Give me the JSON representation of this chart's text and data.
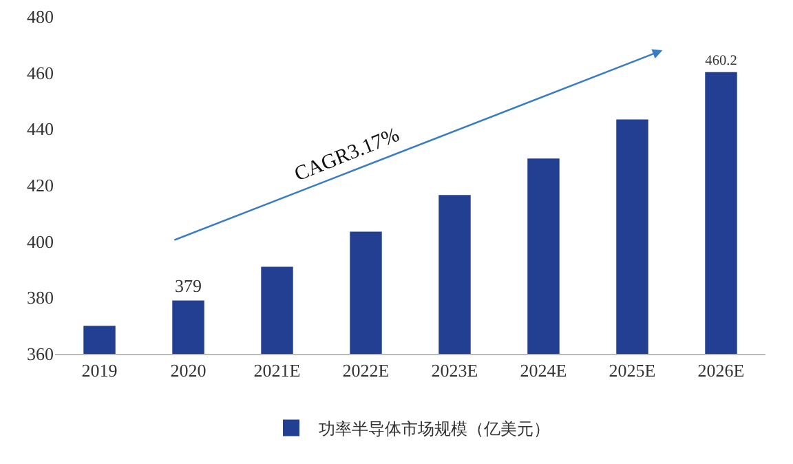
{
  "chart_data": {
    "type": "bar",
    "categories": [
      "2019",
      "2020",
      "2021E",
      "2022E",
      "2023E",
      "2024E",
      "2025E",
      "2026E"
    ],
    "series": [
      {
        "name": "功率半导体市场规模（亿美元）",
        "color": "#233f92",
        "values": [
          370,
          379,
          391,
          403.5,
          416.5,
          429.5,
          443.4,
          460.2
        ],
        "value_labels": [
          null,
          "379",
          null,
          null,
          null,
          null,
          null,
          "460.2"
        ]
      }
    ],
    "ylim": [
      360,
      480
    ],
    "yticks": [
      360,
      380,
      400,
      420,
      440,
      460,
      480
    ],
    "grid": false,
    "legend": "bottom",
    "annotations": [
      "CAGR3.17%"
    ]
  }
}
